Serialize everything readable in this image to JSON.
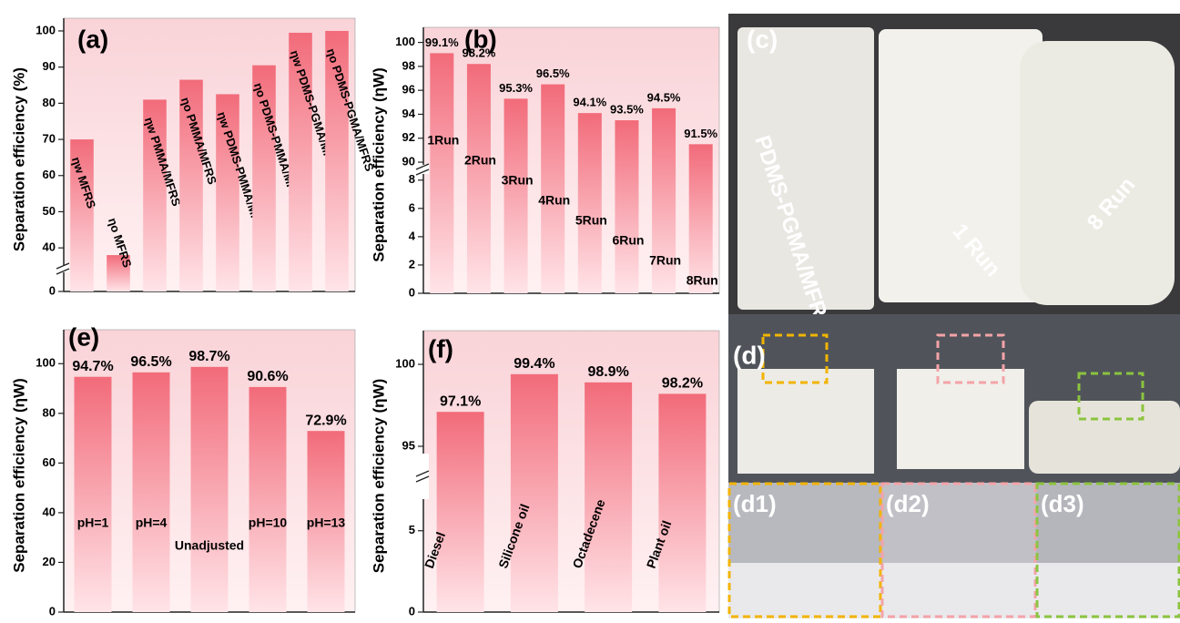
{
  "chart_data": [
    {
      "type": "bar",
      "panel_label": "(a)",
      "y_label": "Separation efficiency (%)",
      "categories": [
        "ηw MFRS",
        "ηo MFRS",
        "ηw PMMA/MFRS",
        "ηo PMMA/MFRS",
        "ηw PDMS-PMMA/MFRS",
        "ηo PDMS-PMMA/MFRS",
        "ηw PDMS-PGMA/MFRS",
        "ηo PDMS-PGMA/MFRS"
      ],
      "values": [
        70,
        38,
        81,
        86.5,
        82.5,
        90.5,
        99.5,
        100
      ],
      "ylim": [
        0,
        101
      ],
      "ybreak": [
        5,
        35
      ],
      "yticks": [
        0,
        40,
        50,
        60,
        70,
        80,
        90,
        100
      ],
      "color": "#f26b7a"
    },
    {
      "type": "bar",
      "panel_label": "(b)",
      "y_label": "Separation efficiency (ηW)",
      "categories": [
        "1Run",
        "2Run",
        "3Run",
        "4Run",
        "5Run",
        "6Run",
        "7Run",
        "8Run"
      ],
      "values": [
        99.1,
        98.2,
        95.3,
        96.5,
        94.1,
        93.5,
        94.5,
        91.5
      ],
      "value_labels": [
        "99.1%",
        "98.2%",
        "95.3%",
        "96.5%",
        "94.1%",
        "93.5%",
        "94.5%",
        "91.5%"
      ],
      "ylim": [
        0,
        100.5
      ],
      "ybreak": [
        8.5,
        89.7
      ],
      "yticks": [
        0,
        2,
        4,
        6,
        8,
        90,
        92,
        94,
        96,
        98,
        100
      ],
      "color": "#f26b7a"
    },
    {
      "type": "bar",
      "panel_label": "(e)",
      "y_label": "Separation efficiency (ηW)",
      "categories": [
        "pH=1",
        "pH=4",
        "Unadjusted",
        "pH=10",
        "pH=13"
      ],
      "values": [
        94.7,
        96.5,
        98.7,
        90.6,
        72.9
      ],
      "value_labels": [
        "94.7%",
        "96.5%",
        "98.7%",
        "90.6%",
        "72.9%"
      ],
      "ylim": [
        0,
        110
      ],
      "yticks": [
        0,
        20,
        40,
        60,
        80,
        100
      ],
      "color": "#f26b7a"
    },
    {
      "type": "bar",
      "panel_label": "(f)",
      "y_label": "Separation efficiency (ηW)",
      "categories": [
        "Diesel",
        "Silicone oil",
        "Octadecene",
        "Plant oil"
      ],
      "values": [
        97.1,
        99.4,
        98.9,
        98.2
      ],
      "value_labels": [
        "97.1%",
        "99.4%",
        "98.9%",
        "98.2%"
      ],
      "ylim": [
        0,
        101.5
      ],
      "ybreak": [
        7,
        94.5
      ],
      "yticks": [
        0,
        5,
        95,
        100
      ],
      "color": "#f26b7a"
    }
  ],
  "photos": {
    "c_label": "(c)",
    "sample_labels": [
      "PDMS-PGMA/MFRS",
      "1 Run",
      "8 Run"
    ],
    "d_label": "(d)",
    "d_sub_labels": [
      "(d1)",
      "(d2)",
      "(d3)"
    ]
  }
}
